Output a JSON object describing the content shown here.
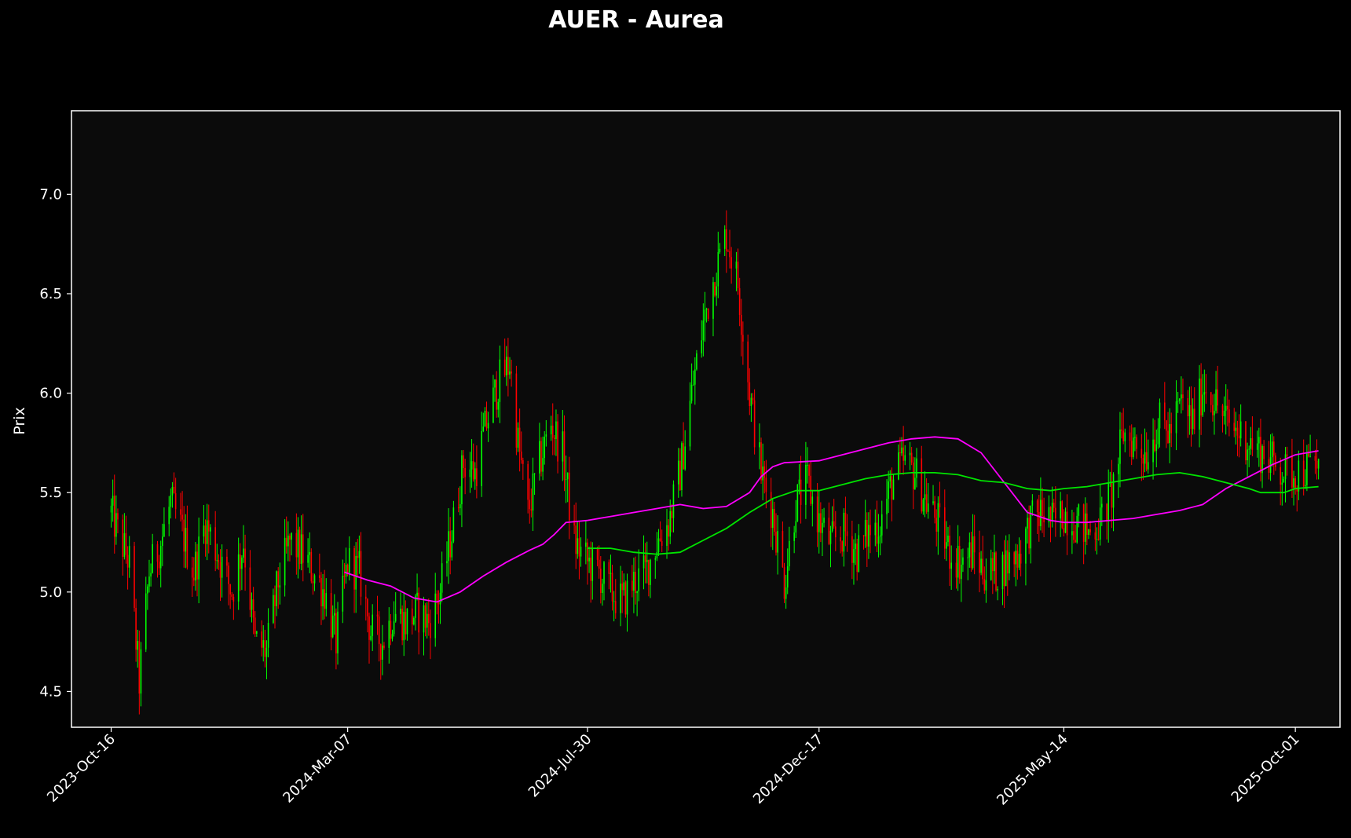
{
  "chart_data": {
    "type": "candlestick",
    "title": "AUER - Aurea",
    "xlabel": "",
    "ylabel": "Prix",
    "ylim": [
      4.32,
      7.42
    ],
    "yticks": [
      "4.5",
      "5.0",
      "5.5",
      "6.0",
      "6.5",
      "7.0"
    ],
    "x_tick_labels": [
      "2023-Oct-16",
      "2024-Mar-07",
      "2024-Jul-30",
      "2024-Dec-17",
      "2025-May-14",
      "2025-Oct-01"
    ],
    "x_tick_dates": [
      "2023-10-16",
      "2024-03-07",
      "2024-07-30",
      "2024-12-17",
      "2025-05-14",
      "2025-10-01"
    ],
    "xlim": [
      "2023-09-22",
      "2025-10-28"
    ],
    "grid": false,
    "legend": false,
    "colors": {
      "background": "#000000",
      "plot_background": "#0b0b0b",
      "up": "#00ff00",
      "down": "#ff0000",
      "ma_long": "#ff00ff",
      "ma_short": "#00e400",
      "text": "#ffffff"
    },
    "price_path": [
      [
        "2023-10-16",
        5.4
      ],
      [
        "2023-10-20",
        5.3
      ],
      [
        "2023-10-27",
        5.15
      ],
      [
        "2023-11-02",
        4.55
      ],
      [
        "2023-11-08",
        5.1
      ],
      [
        "2023-11-15",
        5.25
      ],
      [
        "2023-11-21",
        5.45
      ],
      [
        "2023-11-28",
        5.3
      ],
      [
        "2023-12-05",
        5.1
      ],
      [
        "2023-12-12",
        5.35
      ],
      [
        "2023-12-19",
        5.2
      ],
      [
        "2023-12-28",
        5.0
      ],
      [
        "2024-01-04",
        5.25
      ],
      [
        "2024-01-11",
        4.75
      ],
      [
        "2024-01-18",
        4.7
      ],
      [
        "2024-01-25",
        5.05
      ],
      [
        "2024-02-01",
        5.25
      ],
      [
        "2024-02-08",
        5.2
      ],
      [
        "2024-02-15",
        5.1
      ],
      [
        "2024-02-22",
        5.0
      ],
      [
        "2024-02-29",
        4.75
      ],
      [
        "2024-03-07",
        5.15
      ],
      [
        "2024-03-14",
        5.1
      ],
      [
        "2024-03-21",
        4.8
      ],
      [
        "2024-03-28",
        4.75
      ],
      [
        "2024-04-04",
        4.9
      ],
      [
        "2024-04-11",
        4.85
      ],
      [
        "2024-04-18",
        4.9
      ],
      [
        "2024-04-25",
        4.85
      ],
      [
        "2024-05-02",
        5.0
      ],
      [
        "2024-05-09",
        5.3
      ],
      [
        "2024-05-16",
        5.65
      ],
      [
        "2024-05-23",
        5.6
      ],
      [
        "2024-05-30",
        5.85
      ],
      [
        "2024-06-06",
        6.05
      ],
      [
        "2024-06-13",
        6.15
      ],
      [
        "2024-06-18",
        5.75
      ],
      [
        "2024-06-24",
        5.4
      ],
      [
        "2024-07-01",
        5.65
      ],
      [
        "2024-07-08",
        5.85
      ],
      [
        "2024-07-15",
        5.7
      ],
      [
        "2024-07-22",
        5.25
      ],
      [
        "2024-07-30",
        5.15
      ],
      [
        "2024-08-06",
        5.1
      ],
      [
        "2024-08-13",
        5.0
      ],
      [
        "2024-08-20",
        4.95
      ],
      [
        "2024-08-27",
        5.05
      ],
      [
        "2024-09-03",
        5.1
      ],
      [
        "2024-09-10",
        5.25
      ],
      [
        "2024-09-17",
        5.35
      ],
      [
        "2024-09-24",
        5.6
      ],
      [
        "2024-10-01",
        6.0
      ],
      [
        "2024-10-08",
        6.35
      ],
      [
        "2024-10-15",
        6.6
      ],
      [
        "2024-10-22",
        6.8
      ],
      [
        "2024-10-29",
        6.55
      ],
      [
        "2024-11-05",
        6.0
      ],
      [
        "2024-11-12",
        5.6
      ],
      [
        "2024-11-19",
        5.4
      ],
      [
        "2024-11-26",
        5.05
      ],
      [
        "2024-12-03",
        5.45
      ],
      [
        "2024-12-10",
        5.55
      ],
      [
        "2024-12-17",
        5.35
      ],
      [
        "2024-12-24",
        5.25
      ],
      [
        "2025-01-02",
        5.3
      ],
      [
        "2025-01-09",
        5.2
      ],
      [
        "2025-01-16",
        5.3
      ],
      [
        "2025-01-23",
        5.35
      ],
      [
        "2025-01-30",
        5.55
      ],
      [
        "2025-02-06",
        5.65
      ],
      [
        "2025-02-13",
        5.6
      ],
      [
        "2025-02-20",
        5.45
      ],
      [
        "2025-02-27",
        5.35
      ],
      [
        "2025-03-06",
        5.2
      ],
      [
        "2025-03-13",
        5.15
      ],
      [
        "2025-03-20",
        5.2
      ],
      [
        "2025-03-27",
        5.1
      ],
      [
        "2025-04-03",
        5.1
      ],
      [
        "2025-04-10",
        5.15
      ],
      [
        "2025-04-17",
        5.2
      ],
      [
        "2025-04-24",
        5.35
      ],
      [
        "2025-05-01",
        5.4
      ],
      [
        "2025-05-08",
        5.35
      ],
      [
        "2025-05-14",
        5.4
      ],
      [
        "2025-05-22",
        5.35
      ],
      [
        "2025-05-29",
        5.3
      ],
      [
        "2025-06-05",
        5.35
      ],
      [
        "2025-06-12",
        5.5
      ],
      [
        "2025-06-19",
        5.8
      ],
      [
        "2025-06-26",
        5.75
      ],
      [
        "2025-07-03",
        5.7
      ],
      [
        "2025-07-10",
        5.85
      ],
      [
        "2025-07-17",
        5.8
      ],
      [
        "2025-07-24",
        5.95
      ],
      [
        "2025-07-31",
        5.85
      ],
      [
        "2025-08-07",
        6.05
      ],
      [
        "2025-08-14",
        5.95
      ],
      [
        "2025-08-21",
        5.85
      ],
      [
        "2025-08-28",
        5.8
      ],
      [
        "2025-09-04",
        5.75
      ],
      [
        "2025-09-11",
        5.7
      ],
      [
        "2025-09-18",
        5.65
      ],
      [
        "2025-09-25",
        5.6
      ],
      [
        "2025-10-01",
        5.6
      ],
      [
        "2025-10-08",
        5.62
      ],
      [
        "2025-10-15",
        5.65
      ]
    ],
    "series": [
      {
        "key": "ma_long",
        "color": "#ff00ff",
        "points": [
          [
            "2024-03-05",
            5.1
          ],
          [
            "2024-03-19",
            5.06
          ],
          [
            "2024-04-02",
            5.03
          ],
          [
            "2024-04-16",
            4.97
          ],
          [
            "2024-04-30",
            4.95
          ],
          [
            "2024-05-14",
            5.0
          ],
          [
            "2024-05-28",
            5.08
          ],
          [
            "2024-06-11",
            5.15
          ],
          [
            "2024-06-25",
            5.21
          ],
          [
            "2024-07-03",
            5.24
          ],
          [
            "2024-07-10",
            5.29
          ],
          [
            "2024-07-17",
            5.35
          ],
          [
            "2024-07-30",
            5.36
          ],
          [
            "2024-08-13",
            5.38
          ],
          [
            "2024-08-27",
            5.4
          ],
          [
            "2024-09-10",
            5.42
          ],
          [
            "2024-09-24",
            5.44
          ],
          [
            "2024-10-08",
            5.42
          ],
          [
            "2024-10-22",
            5.43
          ],
          [
            "2024-11-05",
            5.5
          ],
          [
            "2024-11-12",
            5.58
          ],
          [
            "2024-11-19",
            5.63
          ],
          [
            "2024-11-26",
            5.65
          ],
          [
            "2024-12-17",
            5.66
          ],
          [
            "2024-12-31",
            5.69
          ],
          [
            "2025-01-14",
            5.72
          ],
          [
            "2025-01-28",
            5.75
          ],
          [
            "2025-02-11",
            5.77
          ],
          [
            "2025-02-25",
            5.78
          ],
          [
            "2025-03-11",
            5.77
          ],
          [
            "2025-03-25",
            5.7
          ],
          [
            "2025-04-08",
            5.55
          ],
          [
            "2025-04-22",
            5.4
          ],
          [
            "2025-05-06",
            5.36
          ],
          [
            "2025-05-14",
            5.35
          ],
          [
            "2025-05-28",
            5.35
          ],
          [
            "2025-06-11",
            5.36
          ],
          [
            "2025-06-25",
            5.37
          ],
          [
            "2025-07-09",
            5.39
          ],
          [
            "2025-07-23",
            5.41
          ],
          [
            "2025-08-06",
            5.44
          ],
          [
            "2025-08-20",
            5.52
          ],
          [
            "2025-09-03",
            5.58
          ],
          [
            "2025-09-17",
            5.64
          ],
          [
            "2025-10-01",
            5.69
          ],
          [
            "2025-10-15",
            5.71
          ]
        ]
      },
      {
        "key": "ma_short",
        "color": "#00e400",
        "points": [
          [
            "2024-07-30",
            5.22
          ],
          [
            "2024-08-13",
            5.22
          ],
          [
            "2024-08-27",
            5.2
          ],
          [
            "2024-09-10",
            5.19
          ],
          [
            "2024-09-24",
            5.2
          ],
          [
            "2024-10-08",
            5.26
          ],
          [
            "2024-10-22",
            5.32
          ],
          [
            "2024-11-05",
            5.4
          ],
          [
            "2024-11-19",
            5.47
          ],
          [
            "2024-12-03",
            5.51
          ],
          [
            "2024-12-17",
            5.51
          ],
          [
            "2024-12-31",
            5.54
          ],
          [
            "2025-01-14",
            5.57
          ],
          [
            "2025-01-28",
            5.59
          ],
          [
            "2025-02-11",
            5.6
          ],
          [
            "2025-02-25",
            5.6
          ],
          [
            "2025-03-11",
            5.59
          ],
          [
            "2025-03-25",
            5.56
          ],
          [
            "2025-04-08",
            5.55
          ],
          [
            "2025-04-22",
            5.52
          ],
          [
            "2025-05-06",
            5.51
          ],
          [
            "2025-05-14",
            5.52
          ],
          [
            "2025-05-28",
            5.53
          ],
          [
            "2025-06-11",
            5.55
          ],
          [
            "2025-06-25",
            5.57
          ],
          [
            "2025-07-09",
            5.59
          ],
          [
            "2025-07-23",
            5.6
          ],
          [
            "2025-08-06",
            5.58
          ],
          [
            "2025-08-20",
            5.55
          ],
          [
            "2025-09-03",
            5.52
          ],
          [
            "2025-09-10",
            5.5
          ],
          [
            "2025-09-24",
            5.5
          ],
          [
            "2025-10-01",
            5.52
          ],
          [
            "2025-10-15",
            5.53
          ]
        ]
      }
    ]
  }
}
